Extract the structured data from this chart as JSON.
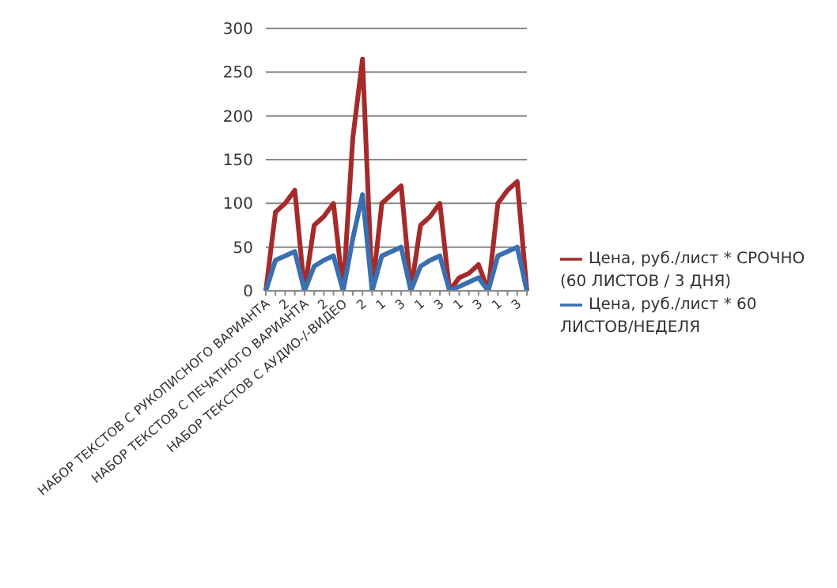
{
  "chart_data": {
    "type": "line",
    "categories": [
      "НАБОР ТЕКСТОВ С РУКОПИСНОГО ВАРИАНТА",
      null,
      "2",
      null,
      "НАБОР ТЕКСТОВ С ПЕЧАТНОГО ВАРИАНТА",
      null,
      "2",
      null,
      "НАБОР ТЕКСТОВ С АУДИО-/-ВИДЕО",
      null,
      "2",
      null,
      "1",
      null,
      "3",
      null,
      "1",
      null,
      "3",
      null,
      "1",
      null,
      "3",
      null,
      "1",
      null,
      "3",
      null
    ],
    "series": [
      {
        "name": "Цена, руб./лист * СРОЧНО (60 ЛИСТОВ / 3 ДНЯ)",
        "color": "#a52a2a",
        "values": [
          0,
          90,
          100,
          115,
          0,
          75,
          85,
          100,
          0,
          175,
          265,
          0,
          100,
          110,
          120,
          0,
          75,
          85,
          100,
          0,
          15,
          20,
          30,
          0,
          100,
          115,
          125,
          0
        ]
      },
      {
        "name": "Цена, руб./лист * 60 ЛИСТОВ/НЕДЕЛЯ",
        "color": "#3a6fb0",
        "values": [
          0,
          35,
          40,
          45,
          0,
          28,
          35,
          40,
          0,
          60,
          110,
          0,
          40,
          45,
          50,
          0,
          28,
          35,
          40,
          0,
          5,
          10,
          15,
          0,
          40,
          45,
          50,
          0
        ]
      }
    ],
    "ylim": [
      0,
      300
    ],
    "yticks": [
      0,
      50,
      100,
      150,
      200,
      250,
      300
    ],
    "grid": "y",
    "legend": "right",
    "marker": "none",
    "line_style": "solid"
  }
}
